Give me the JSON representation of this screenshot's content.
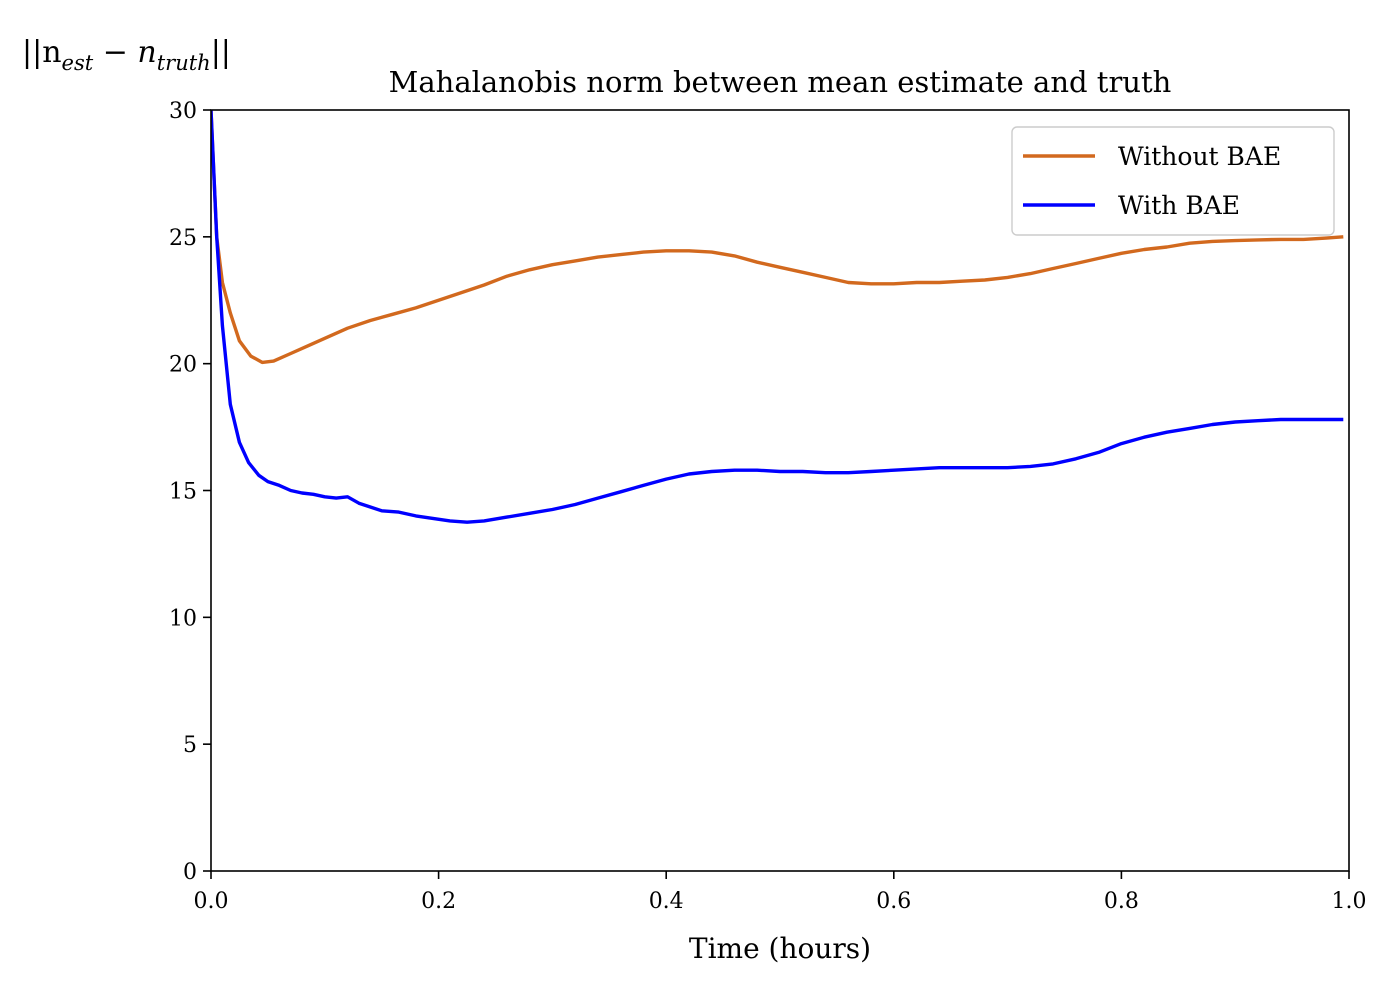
{
  "chart_data": {
    "type": "line",
    "title": "Mahalanobis norm between mean estimate and truth",
    "xlabel": "Time (hours)",
    "ylabel": "||n_est − n_truth||",
    "ylabel_parts": {
      "open": "||n",
      "sub1": "est",
      "mid": " − n",
      "sub2": "truth",
      "close": "||"
    },
    "xlim": [
      0.0,
      1.0
    ],
    "ylim": [
      0,
      30
    ],
    "xticks": [
      0.0,
      0.2,
      0.4,
      0.6,
      0.8,
      1.0
    ],
    "xtick_labels": [
      "0.0",
      "0.2",
      "0.4",
      "0.6",
      "0.8",
      "1.0"
    ],
    "yticks": [
      0,
      5,
      10,
      15,
      20,
      25,
      30
    ],
    "ytick_labels": [
      "0",
      "5",
      "10",
      "15",
      "20",
      "25",
      "30"
    ],
    "grid": false,
    "legend_position": "top-right",
    "series": [
      {
        "name": "Without BAE",
        "color": "#d2691e",
        "points": [
          [
            0.0,
            30
          ],
          [
            0.005,
            25.0
          ],
          [
            0.01,
            23.2
          ],
          [
            0.017,
            22.0
          ],
          [
            0.025,
            20.9
          ],
          [
            0.035,
            20.3
          ],
          [
            0.045,
            20.05
          ],
          [
            0.055,
            20.1
          ],
          [
            0.07,
            20.4
          ],
          [
            0.085,
            20.7
          ],
          [
            0.1,
            21.0
          ],
          [
            0.12,
            21.4
          ],
          [
            0.14,
            21.7
          ],
          [
            0.16,
            21.95
          ],
          [
            0.18,
            22.2
          ],
          [
            0.2,
            22.5
          ],
          [
            0.22,
            22.8
          ],
          [
            0.24,
            23.1
          ],
          [
            0.26,
            23.45
          ],
          [
            0.28,
            23.7
          ],
          [
            0.3,
            23.9
          ],
          [
            0.32,
            24.05
          ],
          [
            0.34,
            24.2
          ],
          [
            0.36,
            24.3
          ],
          [
            0.38,
            24.4
          ],
          [
            0.4,
            24.45
          ],
          [
            0.42,
            24.45
          ],
          [
            0.44,
            24.4
          ],
          [
            0.46,
            24.25
          ],
          [
            0.48,
            24.0
          ],
          [
            0.5,
            23.8
          ],
          [
            0.52,
            23.6
          ],
          [
            0.54,
            23.4
          ],
          [
            0.56,
            23.2
          ],
          [
            0.58,
            23.15
          ],
          [
            0.6,
            23.15
          ],
          [
            0.62,
            23.2
          ],
          [
            0.64,
            23.2
          ],
          [
            0.66,
            23.25
          ],
          [
            0.68,
            23.3
          ],
          [
            0.7,
            23.4
          ],
          [
            0.72,
            23.55
          ],
          [
            0.74,
            23.75
          ],
          [
            0.76,
            23.95
          ],
          [
            0.78,
            24.15
          ],
          [
            0.8,
            24.35
          ],
          [
            0.82,
            24.5
          ],
          [
            0.84,
            24.6
          ],
          [
            0.86,
            24.75
          ],
          [
            0.88,
            24.82
          ],
          [
            0.9,
            24.85
          ],
          [
            0.92,
            24.88
          ],
          [
            0.94,
            24.9
          ],
          [
            0.96,
            24.9
          ],
          [
            0.98,
            24.95
          ],
          [
            0.995,
            25.0
          ]
        ]
      },
      {
        "name": "With BAE",
        "color": "#0000ff",
        "points": [
          [
            0.0,
            30
          ],
          [
            0.005,
            25.0
          ],
          [
            0.01,
            21.5
          ],
          [
            0.017,
            18.4
          ],
          [
            0.025,
            16.9
          ],
          [
            0.033,
            16.1
          ],
          [
            0.042,
            15.6
          ],
          [
            0.05,
            15.35
          ],
          [
            0.06,
            15.2
          ],
          [
            0.07,
            15.0
          ],
          [
            0.08,
            14.9
          ],
          [
            0.09,
            14.85
          ],
          [
            0.1,
            14.75
          ],
          [
            0.11,
            14.7
          ],
          [
            0.12,
            14.75
          ],
          [
            0.13,
            14.5
          ],
          [
            0.14,
            14.35
          ],
          [
            0.15,
            14.2
          ],
          [
            0.165,
            14.15
          ],
          [
            0.18,
            14.0
          ],
          [
            0.195,
            13.9
          ],
          [
            0.21,
            13.8
          ],
          [
            0.225,
            13.75
          ],
          [
            0.24,
            13.8
          ],
          [
            0.26,
            13.95
          ],
          [
            0.28,
            14.1
          ],
          [
            0.3,
            14.25
          ],
          [
            0.32,
            14.45
          ],
          [
            0.34,
            14.7
          ],
          [
            0.36,
            14.95
          ],
          [
            0.38,
            15.2
          ],
          [
            0.4,
            15.45
          ],
          [
            0.42,
            15.65
          ],
          [
            0.44,
            15.75
          ],
          [
            0.46,
            15.8
          ],
          [
            0.48,
            15.8
          ],
          [
            0.5,
            15.75
          ],
          [
            0.52,
            15.75
          ],
          [
            0.54,
            15.7
          ],
          [
            0.56,
            15.7
          ],
          [
            0.58,
            15.75
          ],
          [
            0.6,
            15.8
          ],
          [
            0.62,
            15.85
          ],
          [
            0.64,
            15.9
          ],
          [
            0.66,
            15.9
          ],
          [
            0.68,
            15.9
          ],
          [
            0.7,
            15.9
          ],
          [
            0.72,
            15.95
          ],
          [
            0.74,
            16.05
          ],
          [
            0.76,
            16.25
          ],
          [
            0.78,
            16.5
          ],
          [
            0.8,
            16.85
          ],
          [
            0.82,
            17.1
          ],
          [
            0.84,
            17.3
          ],
          [
            0.86,
            17.45
          ],
          [
            0.88,
            17.6
          ],
          [
            0.9,
            17.7
          ],
          [
            0.92,
            17.75
          ],
          [
            0.94,
            17.8
          ],
          [
            0.96,
            17.8
          ],
          [
            0.98,
            17.8
          ],
          [
            0.995,
            17.8
          ]
        ]
      }
    ]
  }
}
